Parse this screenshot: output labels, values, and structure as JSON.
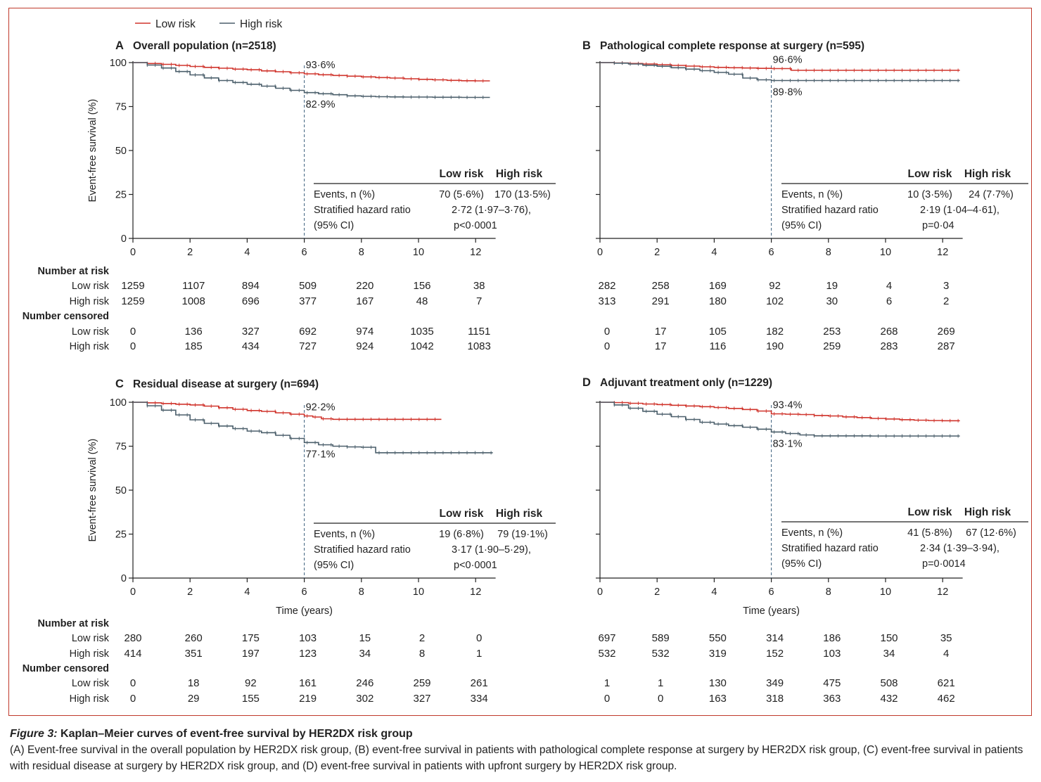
{
  "legend": {
    "low_label": "Low risk",
    "high_label": "High risk",
    "low_color": "#d0342c",
    "high_color": "#4b5f6b"
  },
  "common": {
    "ylabel": "Event-free survival (%)",
    "xlabel": "Time (years)",
    "y_ticks": [
      "0",
      "25",
      "50",
      "75",
      "100"
    ],
    "x_ticks": [
      "0",
      "2",
      "4",
      "6",
      "8",
      "10",
      "12"
    ],
    "table_head": [
      "Low risk",
      "High risk"
    ],
    "events_label": "Events, n (%)",
    "hr_label_1": "Stratified hazard ratio",
    "hr_label_2": "(95% CI)",
    "number_at_risk": "Number at risk",
    "number_censored": "Number censored",
    "row_low": "Low risk",
    "row_high": "High risk"
  },
  "chart_data": [
    {
      "type": "line",
      "letter": "A",
      "title": "Overall population (n=2518)",
      "xlim": [
        0,
        12.7
      ],
      "ylim": [
        0,
        100
      ],
      "landmark_x": 6,
      "series": [
        {
          "name": "Low risk",
          "x": [
            0,
            0.5,
            1,
            1.5,
            2,
            2.5,
            3,
            3.5,
            4,
            4.5,
            5,
            5.5,
            6,
            6.5,
            7,
            7.5,
            8,
            8.5,
            9,
            9.5,
            10,
            10.5,
            11,
            11.5,
            12,
            12.5
          ],
          "y": [
            100,
            99.5,
            99,
            98.4,
            97.8,
            97.3,
            96.8,
            96.3,
            95.9,
            95.3,
            94.8,
            94.2,
            93.6,
            93.1,
            92.7,
            92.3,
            91.9,
            91.5,
            91.2,
            90.8,
            90.5,
            90.2,
            89.9,
            89.7,
            89.6,
            89.6
          ],
          "label": "93·6%"
        },
        {
          "name": "High risk",
          "x": [
            0,
            0.5,
            1,
            1.5,
            2,
            2.5,
            3,
            3.5,
            4,
            4.5,
            5,
            5.5,
            6,
            6.5,
            7,
            7.5,
            8,
            8.5,
            9,
            9.5,
            10,
            10.5,
            11,
            11.5,
            12,
            12.5
          ],
          "y": [
            100,
            98.6,
            96.9,
            94.9,
            93,
            91.3,
            89.8,
            88.7,
            87.7,
            86.6,
            85.4,
            84.2,
            82.9,
            82.3,
            81.7,
            81.1,
            80.8,
            80.6,
            80.5,
            80.4,
            80.4,
            80.3,
            80.3,
            80.2,
            80.2,
            80.2
          ],
          "label": "82·9%"
        }
      ],
      "stats": {
        "events_low": "70 (5·6%)",
        "events_high": "170 (13·5%)",
        "hr_1": "2·72 (1·97–3·76),",
        "hr_2": "p<0·0001"
      },
      "at_risk": {
        "low": [
          "1259",
          "1107",
          "894",
          "509",
          "220",
          "156",
          "38"
        ],
        "high": [
          "1259",
          "1008",
          "696",
          "377",
          "167",
          "48",
          "7"
        ]
      },
      "censored": {
        "low": [
          "0",
          "136",
          "327",
          "692",
          "974",
          "1035",
          "1151"
        ],
        "high": [
          "0",
          "185",
          "434",
          "727",
          "924",
          "1042",
          "1083"
        ]
      }
    },
    {
      "type": "line",
      "letter": "B",
      "title": "Pathological complete response at surgery (n=595)",
      "xlim": [
        0,
        12.7
      ],
      "ylim": [
        0,
        100
      ],
      "landmark_x": 6,
      "series": [
        {
          "name": "Low risk",
          "x": [
            0,
            0.5,
            1,
            1.5,
            2,
            2.5,
            3,
            3.5,
            4,
            4.5,
            5,
            5.5,
            6,
            6.5,
            6.7,
            7,
            8,
            9,
            10,
            11,
            12,
            12.6
          ],
          "y": [
            100,
            99.8,
            99.5,
            99.2,
            98.8,
            98.4,
            98,
            97.6,
            97.3,
            97.1,
            96.9,
            96.7,
            96.6,
            96.6,
            95.6,
            95.6,
            95.6,
            95.6,
            95.6,
            95.6,
            95.6,
            95.6
          ],
          "label": "96·6%"
        },
        {
          "name": "High risk",
          "x": [
            0,
            0.5,
            1,
            1.5,
            2,
            2.5,
            3,
            3.5,
            4,
            4.5,
            5,
            5.5,
            6,
            7,
            8,
            9,
            10,
            11,
            12,
            12.6
          ],
          "y": [
            100,
            99.7,
            99.2,
            98.5,
            97.9,
            97.1,
            96.3,
            95.4,
            94.4,
            93.4,
            91.2,
            90.2,
            89.8,
            89.8,
            89.8,
            89.8,
            89.8,
            89.8,
            89.8,
            89.8
          ],
          "label": "89·8%"
        }
      ],
      "stats": {
        "events_low": "10 (3·5%)",
        "events_high": "24 (7·7%)",
        "hr_1": "2·19 (1·04–4·61),",
        "hr_2": "p=0·04"
      },
      "at_risk": {
        "low": [
          "282",
          "258",
          "169",
          "92",
          "19",
          "4",
          "3"
        ],
        "high": [
          "313",
          "291",
          "180",
          "102",
          "30",
          "6",
          "2"
        ]
      },
      "censored": {
        "low": [
          "0",
          "17",
          "105",
          "182",
          "253",
          "268",
          "269"
        ],
        "high": [
          "0",
          "17",
          "116",
          "190",
          "259",
          "283",
          "287"
        ]
      }
    },
    {
      "type": "line",
      "letter": "C",
      "title": "Residual disease at surgery (n=694)",
      "xlim": [
        0,
        12.7
      ],
      "ylim": [
        0,
        100
      ],
      "landmark_x": 6,
      "series": [
        {
          "name": "Low risk",
          "x": [
            0,
            0.5,
            1,
            1.5,
            2,
            2.5,
            3,
            3.5,
            4,
            4.5,
            5,
            5.5,
            6,
            6.3,
            6.6,
            7,
            8,
            9,
            10,
            10.8
          ],
          "y": [
            100,
            99.7,
            99.3,
            98.9,
            98.5,
            97.8,
            96.9,
            96,
            95.3,
            94.8,
            94,
            93.2,
            92.2,
            91.6,
            90.6,
            90.3,
            90.3,
            90.3,
            90.3,
            90.3
          ],
          "label": "92·2%"
        },
        {
          "name": "High risk",
          "x": [
            0,
            0.5,
            1,
            1.5,
            2,
            2.5,
            3,
            3.5,
            4,
            4.5,
            5,
            5.5,
            6,
            6.5,
            7,
            7.5,
            8,
            8.4,
            8.5,
            9,
            10,
            11,
            12,
            12.6
          ],
          "y": [
            100,
            98,
            95.5,
            92.8,
            90,
            88,
            86.5,
            85,
            83.6,
            82.7,
            81.2,
            79.4,
            77.1,
            75.8,
            75,
            74.6,
            74.4,
            74.4,
            71.3,
            71.3,
            71.3,
            71.3,
            71.3,
            71.3
          ],
          "label": "77·1%"
        }
      ],
      "stats": {
        "events_low": "19 (6·8%)",
        "events_high": "79 (19·1%)",
        "hr_1": "3·17 (1·90–5·29),",
        "hr_2": "p<0·0001"
      },
      "at_risk": {
        "low": [
          "280",
          "260",
          "175",
          "103",
          "15",
          "2",
          "0"
        ],
        "high": [
          "414",
          "351",
          "197",
          "123",
          "34",
          "8",
          "1"
        ]
      },
      "censored": {
        "low": [
          "0",
          "18",
          "92",
          "161",
          "246",
          "259",
          "261"
        ],
        "high": [
          "0",
          "29",
          "155",
          "219",
          "302",
          "327",
          "334"
        ]
      }
    },
    {
      "type": "line",
      "letter": "D",
      "title": "Adjuvant treatment only (n=1229)",
      "xlim": [
        0,
        12.7
      ],
      "ylim": [
        0,
        100
      ],
      "landmark_x": 6,
      "series": [
        {
          "name": "Low risk",
          "x": [
            0,
            0.5,
            1,
            1.5,
            2,
            2.5,
            3,
            3.5,
            4,
            4.5,
            5,
            5.5,
            6,
            6.5,
            7,
            7.5,
            8,
            8.5,
            9,
            9.5,
            10,
            10.5,
            11,
            11.5,
            12,
            12.6
          ],
          "y": [
            100,
            99.8,
            99.4,
            99,
            98.7,
            98.3,
            97.9,
            97.5,
            97,
            96.5,
            95.9,
            95,
            93.4,
            93.2,
            93,
            92.5,
            92.2,
            91.7,
            91.3,
            90.8,
            90.5,
            90.1,
            89.8,
            89.6,
            89.5,
            89.5
          ],
          "label": "93·4%"
        },
        {
          "name": "High risk",
          "x": [
            0,
            0.5,
            1,
            1.5,
            2,
            2.5,
            3,
            3.5,
            4,
            4.5,
            5,
            5.5,
            6,
            6.5,
            7,
            7.5,
            8,
            8.5,
            9,
            9.5,
            10,
            10.5,
            11,
            11.5,
            12,
            12.6
          ],
          "y": [
            100,
            98.5,
            96.6,
            94.9,
            93.2,
            91.8,
            90.2,
            88.6,
            87.6,
            86.7,
            85.8,
            84.7,
            83.1,
            82.2,
            81.4,
            80.9,
            80.9,
            80.9,
            80.9,
            80.8,
            80.8,
            80.8,
            80.8,
            80.8,
            80.8,
            80.8
          ],
          "label": "83·1%"
        }
      ],
      "stats": {
        "events_low": "41 (5·8%)",
        "events_high": "67 (12·6%)",
        "hr_1": "2·34 (1·39–3·94),",
        "hr_2": "p=0·0014"
      },
      "at_risk": {
        "low": [
          "697",
          "589",
          "550",
          "314",
          "186",
          "150",
          "35"
        ],
        "high": [
          "532",
          "532",
          "319",
          "152",
          "103",
          "34",
          "4"
        ]
      },
      "censored": {
        "low": [
          "1",
          "1",
          "130",
          "349",
          "475",
          "508",
          "621"
        ],
        "high": [
          "0",
          "0",
          "163",
          "318",
          "363",
          "432",
          "462"
        ]
      }
    }
  ],
  "caption": {
    "fig_label": "Figure 3:",
    "title": "Kaplan–Meier curves of event-free survival by HER2DX risk group",
    "text": "(A) Event-free survival in the overall population by HER2DX risk group, (B) event-free survival in patients with pathological complete response at surgery by HER2DX risk group, (C) event-free survival in patients with residual disease at surgery by HER2DX risk group, and (D) event-free survival in patients with upfront surgery by HER2DX risk group."
  }
}
